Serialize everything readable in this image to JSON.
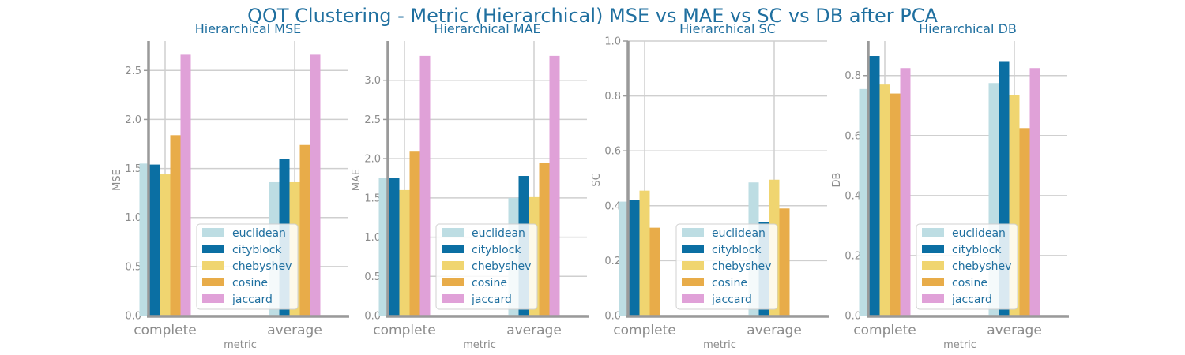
{
  "figure": {
    "suptitle": "QOT Clustering - Metric (Hierarchical) MSE vs MAE vs SC vs DB after PCA"
  },
  "chart_data": [
    {
      "type": "bar",
      "title": "Hierarchical MSE",
      "xlabel": "metric",
      "ylabel": "MSE",
      "categories": [
        "complete",
        "average"
      ],
      "ylim": [
        0,
        2.8
      ],
      "yticks": [
        "0.0",
        "0.5",
        "1.0",
        "1.5",
        "2.0",
        "2.5"
      ],
      "legend": "lower-center",
      "grid": true,
      "series": [
        {
          "name": "euclidean",
          "color": "#bddde3",
          "values": [
            1.55,
            1.36
          ]
        },
        {
          "name": "cityblock",
          "color": "#0b6fa3",
          "values": [
            1.54,
            1.6
          ]
        },
        {
          "name": "chebyshev",
          "color": "#f0d570",
          "values": [
            1.44,
            1.36
          ]
        },
        {
          "name": "cosine",
          "color": "#e8ac49",
          "values": [
            1.84,
            1.74
          ]
        },
        {
          "name": "jaccard",
          "color": "#e0a1d8",
          "values": [
            2.66,
            2.66
          ]
        }
      ]
    },
    {
      "type": "bar",
      "title": "Hierarchical MAE",
      "xlabel": "metric",
      "ylabel": "MAE",
      "categories": [
        "complete",
        "average"
      ],
      "ylim": [
        0,
        3.5
      ],
      "yticks": [
        "0.0",
        "0.5",
        "1.0",
        "1.5",
        "2.0",
        "2.5",
        "3.0"
      ],
      "legend": "lower-center",
      "grid": true,
      "series": [
        {
          "name": "euclidean",
          "color": "#bddde3",
          "values": [
            1.75,
            1.5
          ]
        },
        {
          "name": "cityblock",
          "color": "#0b6fa3",
          "values": [
            1.76,
            1.78
          ]
        },
        {
          "name": "chebyshev",
          "color": "#f0d570",
          "values": [
            1.6,
            1.51
          ]
        },
        {
          "name": "cosine",
          "color": "#e8ac49",
          "values": [
            2.09,
            1.95
          ]
        },
        {
          "name": "jaccard",
          "color": "#e0a1d8",
          "values": [
            3.31,
            3.31
          ]
        }
      ]
    },
    {
      "type": "bar",
      "title": "Hierarchical SC",
      "xlabel": "metric",
      "ylabel": "SC",
      "categories": [
        "complete",
        "average"
      ],
      "ylim": [
        0,
        1.0
      ],
      "yticks": [
        "0.0",
        "0.2",
        "0.4",
        "0.6",
        "0.8",
        "1.0"
      ],
      "legend": "lower-center",
      "grid": true,
      "series": [
        {
          "name": "euclidean",
          "color": "#bddde3",
          "values": [
            0.415,
            0.485
          ]
        },
        {
          "name": "cityblock",
          "color": "#0b6fa3",
          "values": [
            0.42,
            0.34
          ]
        },
        {
          "name": "chebyshev",
          "color": "#f0d570",
          "values": [
            0.455,
            0.495
          ]
        },
        {
          "name": "cosine",
          "color": "#e8ac49",
          "values": [
            0.32,
            0.39
          ]
        },
        {
          "name": "jaccard",
          "color": "#e0a1d8",
          "values": [
            0.0,
            0.0
          ]
        }
      ]
    },
    {
      "type": "bar",
      "title": "Hierarchical DB",
      "xlabel": "metric",
      "ylabel": "DB",
      "categories": [
        "complete",
        "average"
      ],
      "ylim": [
        0,
        0.915
      ],
      "yticks": [
        "0.0",
        "0.2",
        "0.4",
        "0.6",
        "0.8"
      ],
      "legend": "lower-center",
      "grid": true,
      "series": [
        {
          "name": "euclidean",
          "color": "#bddde3",
          "values": [
            0.755,
            0.775
          ]
        },
        {
          "name": "cityblock",
          "color": "#0b6fa3",
          "values": [
            0.865,
            0.848
          ]
        },
        {
          "name": "chebyshev",
          "color": "#f0d570",
          "values": [
            0.77,
            0.735
          ]
        },
        {
          "name": "cosine",
          "color": "#e8ac49",
          "values": [
            0.74,
            0.625
          ]
        },
        {
          "name": "jaccard",
          "color": "#e0a1d8",
          "values": [
            0.825,
            0.825
          ]
        }
      ]
    }
  ]
}
